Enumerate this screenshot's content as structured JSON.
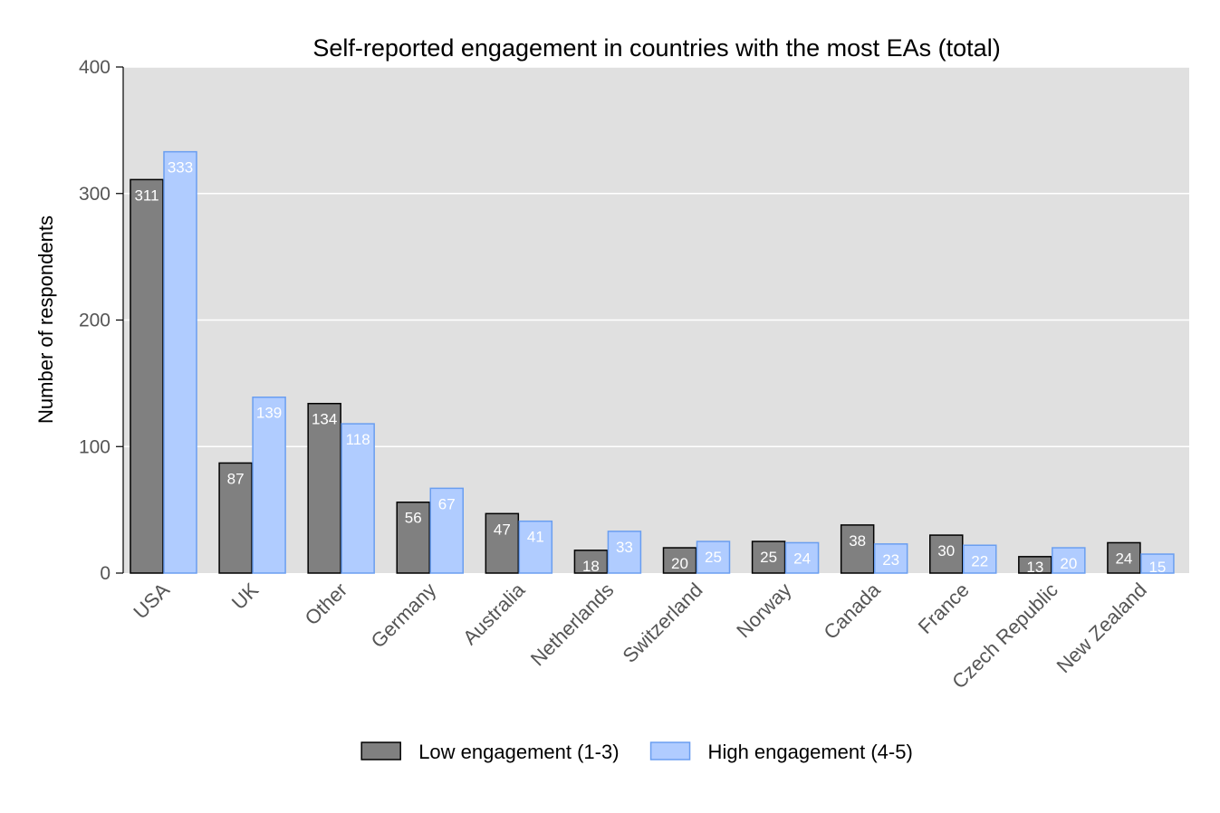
{
  "chart_data": {
    "type": "bar",
    "title": "Self-reported engagement in countries with the most EAs (total)",
    "xlabel": "",
    "ylabel": "Number of respondents",
    "ylim": [
      0,
      400
    ],
    "yticks": [
      "0",
      "100",
      "200",
      "300",
      "400"
    ],
    "categories": [
      "USA",
      "UK",
      "Other",
      "Germany",
      "Australia",
      "Netherlands",
      "Switzerland",
      "Norway",
      "Canada",
      "France",
      "Czech Republic",
      "New Zealand"
    ],
    "series": [
      {
        "name": "Low engagement (1-3)",
        "values": [
          311,
          87,
          134,
          56,
          47,
          18,
          20,
          25,
          38,
          30,
          13,
          24
        ],
        "color": "#808080",
        "stroke": "#000000"
      },
      {
        "name": "High engagement (4-5)",
        "values": [
          333,
          139,
          118,
          67,
          41,
          33,
          25,
          24,
          23,
          22,
          20,
          15
        ],
        "color": "#b0ccff",
        "stroke": "#6a9ef0"
      }
    ],
    "grid": true,
    "panel_background": "#e0e0e0",
    "legend_position": "bottom"
  }
}
